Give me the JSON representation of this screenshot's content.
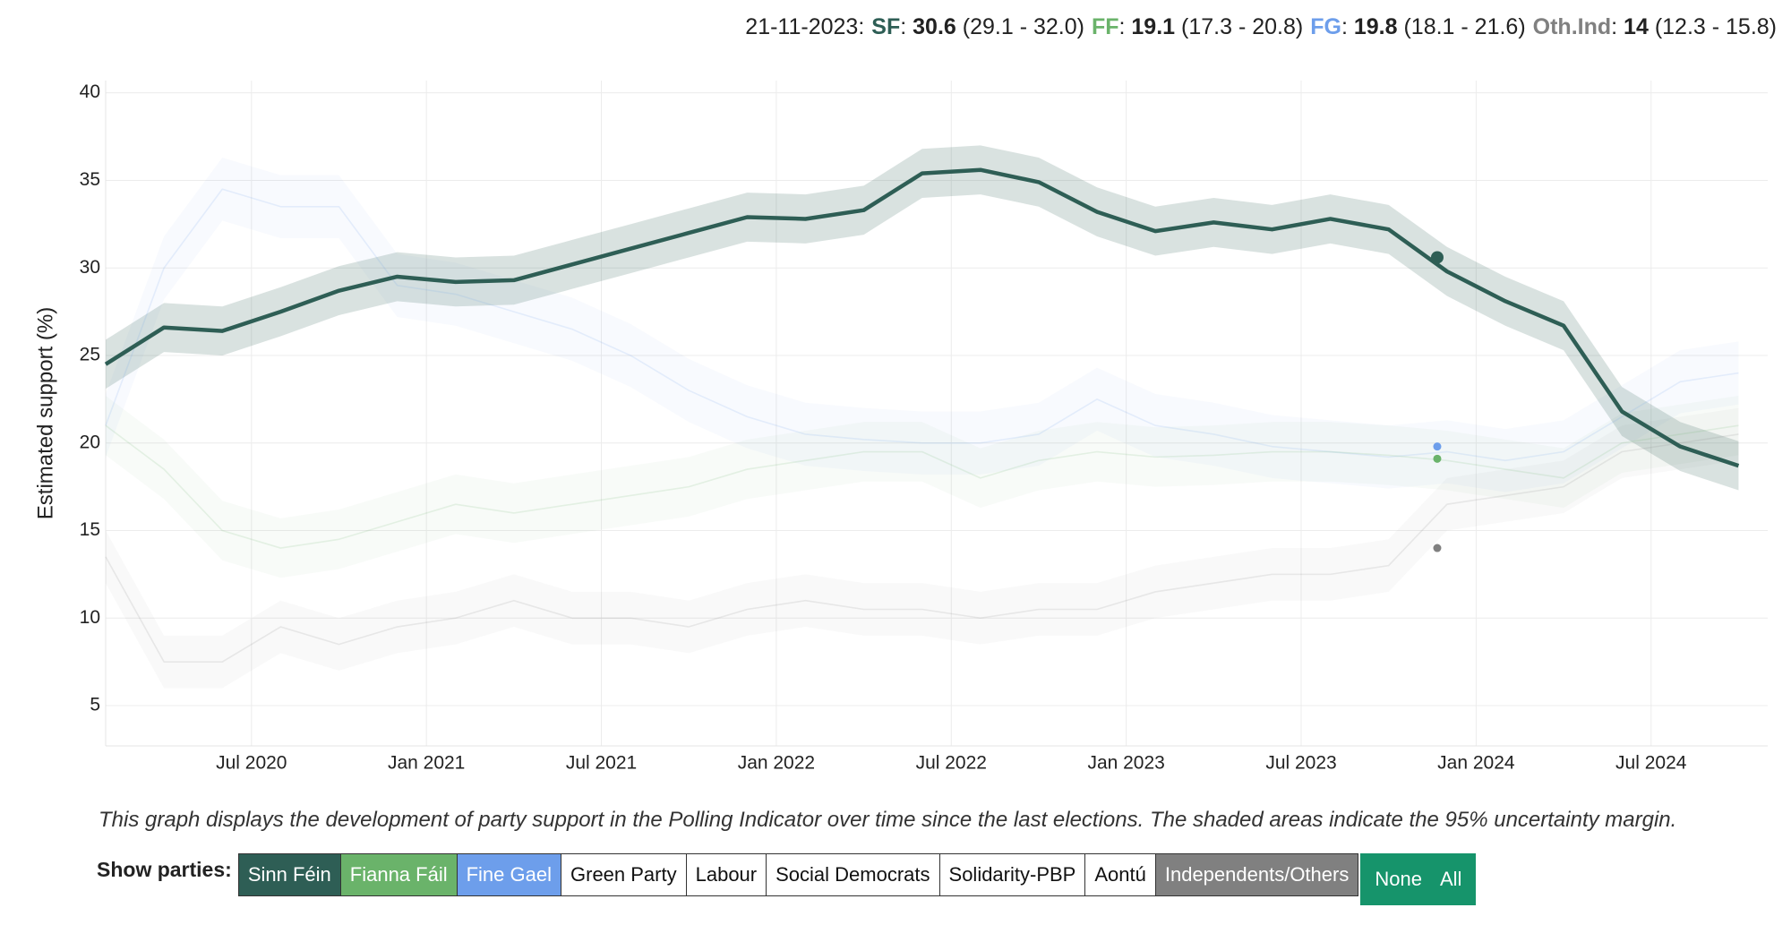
{
  "chart_data": {
    "type": "line",
    "y_label": "Estimated support (%)",
    "x": [
      "2020-02",
      "2020-04",
      "2020-06",
      "2020-08",
      "2020-10",
      "2020-12",
      "2021-02",
      "2021-04",
      "2021-06",
      "2021-08",
      "2021-10",
      "2021-12",
      "2022-02",
      "2022-04",
      "2022-06",
      "2022-08",
      "2022-10",
      "2022-12",
      "2023-02",
      "2023-04",
      "2023-06",
      "2023-08",
      "2023-10",
      "2023-12",
      "2024-02",
      "2024-04",
      "2024-06",
      "2024-08",
      "2024-10"
    ],
    "xlim": [
      "2020-02",
      "2024-11"
    ],
    "xticks": [
      {
        "value": "2020-07",
        "label": "Jul 2020"
      },
      {
        "value": "2021-01",
        "label": "Jan 2021"
      },
      {
        "value": "2021-07",
        "label": "Jul 2021"
      },
      {
        "value": "2022-01",
        "label": "Jan 2022"
      },
      {
        "value": "2022-07",
        "label": "Jul 2022"
      },
      {
        "value": "2023-01",
        "label": "Jan 2023"
      },
      {
        "value": "2023-07",
        "label": "Jul 2023"
      },
      {
        "value": "2024-01",
        "label": "Jan 2024"
      },
      {
        "value": "2024-07",
        "label": "Jul 2024"
      }
    ],
    "ylim": [
      2.7,
      40.7
    ],
    "yticks": [
      5,
      10,
      15,
      20,
      25,
      30,
      35,
      40
    ],
    "grid": true,
    "series": [
      {
        "name": "Sinn Féin",
        "color": "#2e5e55",
        "opacity": 1,
        "values": [
          24.5,
          26.6,
          26.4,
          27.5,
          28.7,
          29.5,
          29.2,
          29.3,
          30.2,
          31.1,
          32.0,
          32.9,
          32.8,
          33.3,
          35.4,
          35.6,
          34.9,
          33.2,
          32.1,
          32.6,
          32.2,
          32.8,
          32.2,
          29.8,
          28.1,
          26.7,
          21.8,
          19.8,
          18.7
        ],
        "lower": [
          23.1,
          25.2,
          25.0,
          26.1,
          27.3,
          28.1,
          27.8,
          27.9,
          28.8,
          29.7,
          30.6,
          31.5,
          31.4,
          31.9,
          34.0,
          34.2,
          33.5,
          31.8,
          30.7,
          31.2,
          30.8,
          31.4,
          30.8,
          28.4,
          26.7,
          25.3,
          20.4,
          18.4,
          17.3
        ],
        "upper": [
          25.9,
          28.0,
          27.8,
          28.9,
          30.1,
          30.9,
          30.6,
          30.7,
          31.6,
          32.5,
          33.4,
          34.3,
          34.2,
          34.7,
          36.8,
          37.0,
          36.3,
          34.6,
          33.5,
          34.0,
          33.6,
          34.2,
          33.6,
          31.2,
          29.5,
          28.1,
          23.2,
          21.2,
          20.1
        ]
      },
      {
        "name": "Fianna Fáil",
        "color": "#6ab36a",
        "opacity": 0.15,
        "values": [
          21,
          18.5,
          15,
          14,
          14.5,
          15.5,
          16.5,
          16,
          16.5,
          17,
          17.5,
          18.5,
          19,
          19.5,
          19.5,
          18,
          19,
          19.5,
          19.2,
          19.3,
          19.5,
          19.5,
          19.3,
          19,
          18.5,
          18,
          20,
          20.5,
          21
        ],
        "lower": [
          19.3,
          16.8,
          13.3,
          12.3,
          12.8,
          13.8,
          14.8,
          14.3,
          14.8,
          15.3,
          15.8,
          16.8,
          17.3,
          17.8,
          17.8,
          16.3,
          17.3,
          17.8,
          17.5,
          17.6,
          17.8,
          17.8,
          17.6,
          17.3,
          16.8,
          16.3,
          18.3,
          18.8,
          19.3
        ],
        "upper": [
          22.7,
          20.2,
          16.7,
          15.7,
          16.2,
          17.2,
          18.2,
          17.7,
          18.2,
          18.7,
          19.2,
          20.2,
          20.7,
          21.2,
          21.2,
          19.7,
          20.7,
          21.2,
          20.9,
          21.0,
          21.2,
          21.2,
          21.0,
          20.7,
          20.2,
          19.7,
          21.7,
          22.2,
          22.7
        ]
      },
      {
        "name": "Fine Gael",
        "color": "#6d9eeb",
        "opacity": 0.15,
        "values": [
          21,
          30,
          34.5,
          33.5,
          33.5,
          29,
          28.5,
          27.5,
          26.5,
          25,
          23,
          21.5,
          20.5,
          20.2,
          20,
          20,
          20.5,
          22.5,
          21,
          20.5,
          19.8,
          19.5,
          19.2,
          19.5,
          19,
          19.5,
          21.5,
          23.5,
          24
        ],
        "lower": [
          19.2,
          28.2,
          32.7,
          31.7,
          31.7,
          27.2,
          26.7,
          25.7,
          24.7,
          23.2,
          21.2,
          19.7,
          18.7,
          18.4,
          18.2,
          18.2,
          18.7,
          20.7,
          19.2,
          18.7,
          18.0,
          17.7,
          17.4,
          17.7,
          17.2,
          17.7,
          19.7,
          21.7,
          22.2
        ],
        "upper": [
          22.8,
          31.8,
          36.3,
          35.3,
          35.3,
          30.8,
          30.3,
          29.3,
          28.3,
          26.8,
          24.8,
          23.3,
          22.3,
          22.0,
          21.8,
          21.8,
          22.3,
          24.3,
          22.8,
          22.3,
          21.6,
          21.3,
          21.0,
          21.3,
          20.8,
          21.3,
          23.3,
          25.3,
          25.8
        ]
      },
      {
        "name": "Independents/Others",
        "color": "#808080",
        "opacity": 0.15,
        "values": [
          13.5,
          7.5,
          7.5,
          9.5,
          8.5,
          9.5,
          10,
          11,
          10,
          10,
          9.5,
          10.5,
          11,
          10.5,
          10.5,
          10,
          10.5,
          10.5,
          11.5,
          12,
          12.5,
          12.5,
          13,
          16.5,
          17,
          17.5,
          19.5,
          20,
          20.5
        ],
        "lower": [
          12,
          6,
          6,
          8,
          7,
          8,
          8.5,
          9.5,
          8.5,
          8.5,
          8,
          9,
          9.5,
          9,
          9,
          8.5,
          9,
          9,
          10,
          10.5,
          11,
          11,
          11.5,
          15,
          15.5,
          16,
          18,
          18.5,
          19
        ],
        "upper": [
          15,
          9,
          9,
          11,
          10,
          11,
          11.5,
          12.5,
          11.5,
          11.5,
          11,
          12,
          12.5,
          12,
          12,
          11.5,
          12,
          12,
          13,
          13.5,
          14,
          14,
          14.5,
          18,
          18.5,
          19,
          21,
          21.5,
          22
        ]
      }
    ],
    "readout": {
      "date": "21-11-2023",
      "entries": [
        {
          "name": "SF",
          "value": 30.6,
          "range": "(29.1 - 32.0)"
        },
        {
          "name": "FF",
          "value": 19.1,
          "range": "(17.3 - 20.8)"
        },
        {
          "name": "FG",
          "value": 19.8,
          "range": "(18.1 - 21.6)"
        },
        {
          "name": "Oth.Ind",
          "value": 14.0,
          "range": "(12.3 - 15.8)"
        }
      ]
    },
    "caption": "This graph displays the development of party support in the Polling Indicator over time since the last elections. The shaded areas indicate the 95% uncertainty margin.",
    "filter": {
      "label": "Show parties:",
      "other_parties": [
        "Green Party",
        "Labour",
        "Social Democrats",
        "Solidarity-PBP",
        "Aontú"
      ],
      "none": "None",
      "all": "All"
    }
  }
}
